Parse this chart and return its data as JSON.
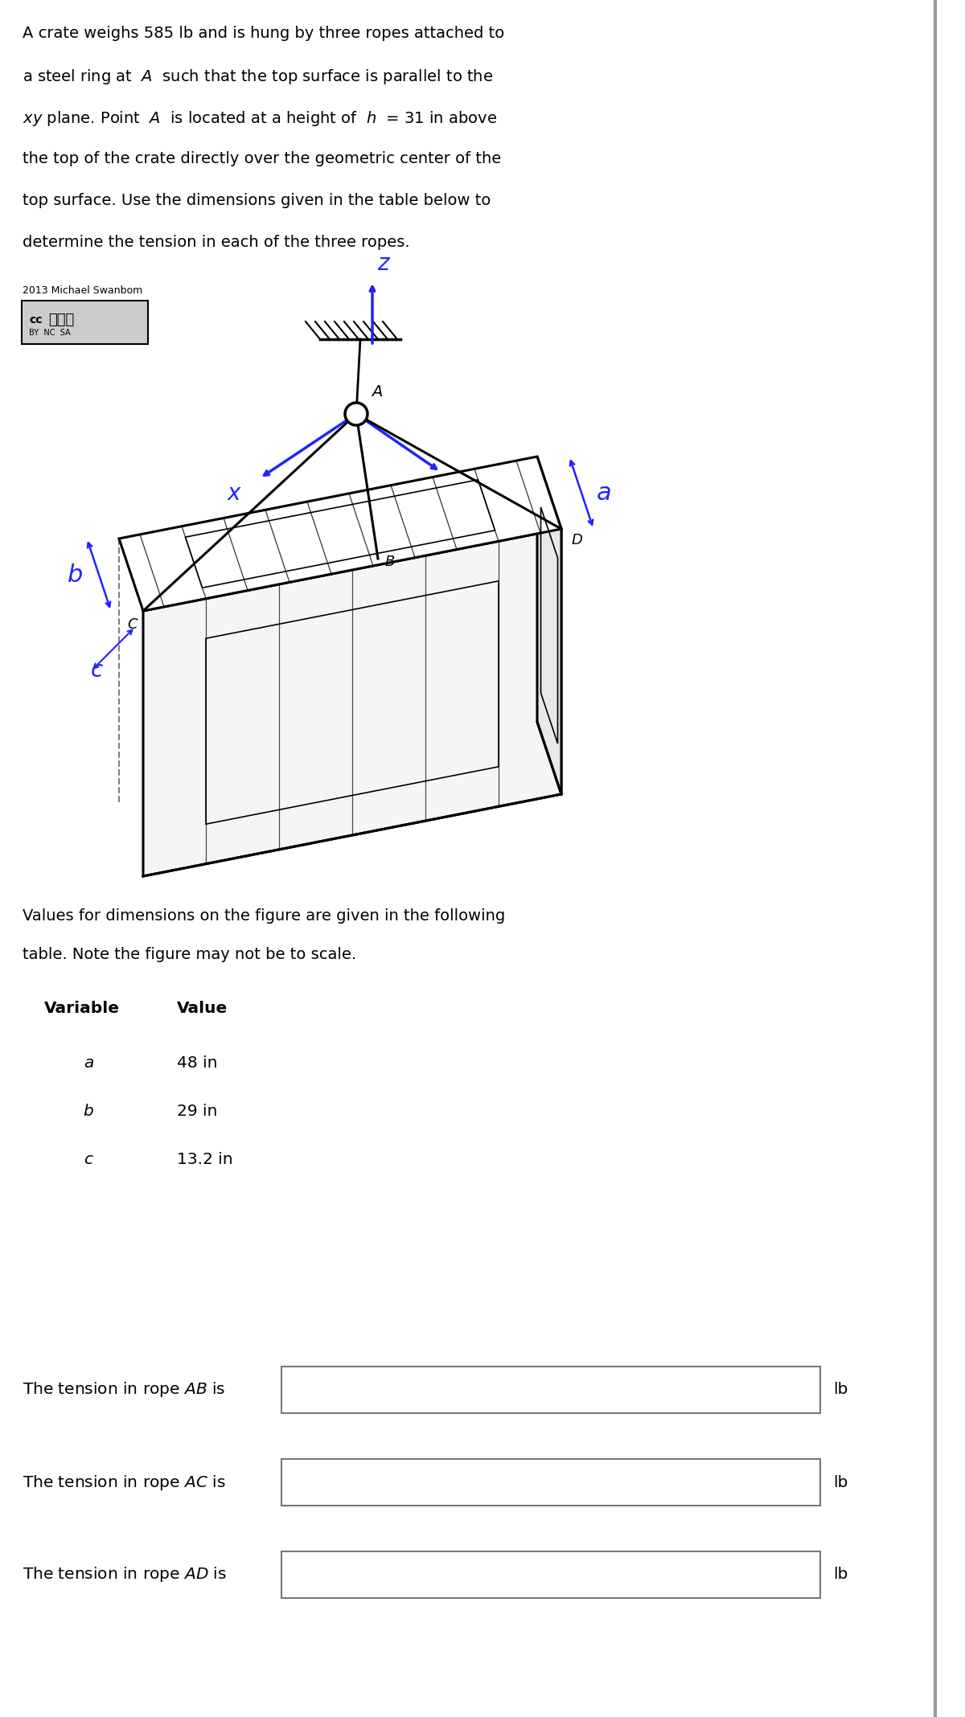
{
  "title_lines": [
    "A crate weighs 585 lb and is hung by three ropes attached to",
    "a steel ring at  $A$  such that the top surface is parallel to the",
    "$xy$ plane. Point  $A$  is located at a height of  $h$  = 31 in above",
    "the top of the crate directly over the geometric center of the",
    "top surface. Use the dimensions given in the table below to",
    "determine the tension in each of the three ropes."
  ],
  "copyright_text": "2013 Michael Swanbom",
  "cc_text": "cc",
  "byncsa_text": "BY  NC  SA",
  "table_intro": [
    "Values for dimensions on the figure are given in the following",
    "table. Note the figure may not be to scale."
  ],
  "table_header_var": "Variable",
  "table_header_val": "Value",
  "table_rows": [
    [
      "a",
      "48 in"
    ],
    [
      "b",
      "29 in"
    ],
    [
      "c",
      "13.2 in"
    ]
  ],
  "tension_labels": [
    "The tension in rope $AB$ is",
    "The tension in rope $AC$ is",
    "The tension in rope $AD$ is"
  ],
  "lb_label": "lb",
  "bg_color": "#ffffff",
  "text_color": "#000000",
  "blue_color": "#2222ff",
  "divider_color": "#999999"
}
